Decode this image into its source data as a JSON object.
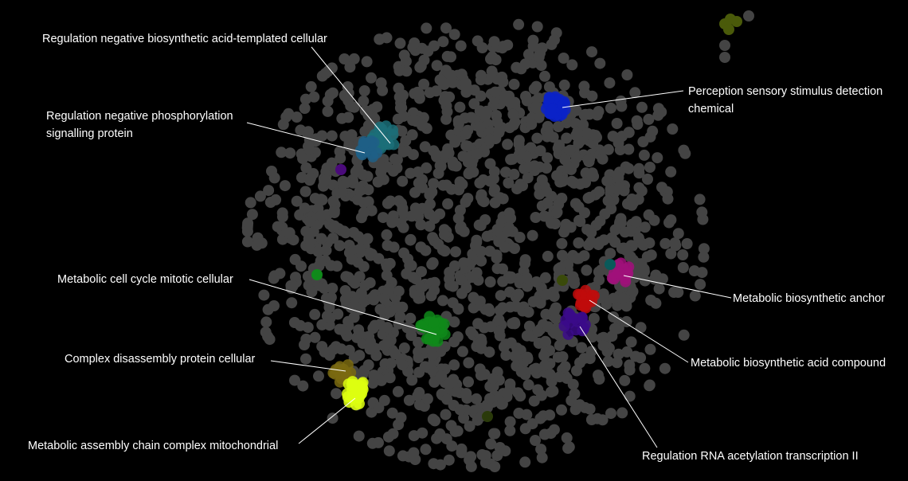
{
  "colors": {
    "background": "#000000",
    "node": "#444444",
    "label_text": "#ffffff",
    "leader_line": "#ffffff"
  },
  "clusters": [
    {
      "label_lines": [
        "Regulation negative biosynthetic acid-templated cellular"
      ],
      "color": "#1b6f78"
    },
    {
      "label_lines": [
        "Regulation negative phosphorylation",
        "signalling protein"
      ],
      "color": "#1e5f86"
    },
    {
      "label_lines": [
        "Perception sensory stimulus detection",
        "chemical"
      ],
      "color": "#0a22c8"
    },
    {
      "label_lines": [
        "Metabolic cell cycle mitotic cellular"
      ],
      "color": "#0f8a1a"
    },
    {
      "label_lines": [
        "Complex disassembly protein cellular"
      ],
      "color": "#7a6a10"
    },
    {
      "label_lines": [
        "Metabolic assembly chain complex mitochondrial"
      ],
      "color": "#ddff10"
    },
    {
      "label_lines": [
        "Metabolic biosynthetic anchor"
      ],
      "color": "#a0107a"
    },
    {
      "label_lines": [
        "Metabolic biosynthetic acid compound"
      ],
      "color": "#c00c0c"
    },
    {
      "label_lines": [
        "Regulation RNA acetylation transcription II"
      ],
      "color": "#3b0a8a"
    }
  ]
}
